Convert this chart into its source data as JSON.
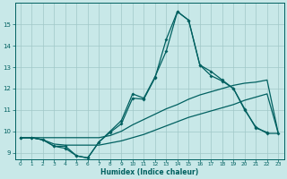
{
  "xlabel": "Humidex (Indice chaleur)",
  "bg_color": "#c8e8e8",
  "grid_color": "#a0c8c8",
  "line_color": "#006060",
  "xlim": [
    -0.5,
    23.5
  ],
  "ylim": [
    8.7,
    16.0
  ],
  "yticks": [
    9,
    10,
    11,
    12,
    13,
    14,
    15
  ],
  "xticks": [
    0,
    1,
    2,
    3,
    4,
    5,
    6,
    7,
    8,
    9,
    10,
    11,
    12,
    13,
    14,
    15,
    16,
    17,
    18,
    19,
    20,
    21,
    22,
    23
  ],
  "s1_x": [
    0,
    1,
    2,
    3,
    4,
    5,
    6,
    7,
    8,
    9,
    10,
    11,
    12,
    13,
    14,
    15,
    16,
    17,
    18,
    19,
    20,
    21,
    22
  ],
  "s1_y": [
    9.7,
    9.7,
    9.6,
    9.3,
    9.3,
    8.85,
    8.75,
    9.5,
    10.0,
    10.5,
    11.75,
    11.55,
    12.55,
    13.75,
    15.6,
    15.2,
    13.1,
    12.6,
    12.35,
    12.0,
    11.05,
    10.15,
    9.95
  ],
  "s2_x": [
    0,
    1,
    2,
    3,
    4,
    5,
    6,
    7,
    8,
    9,
    10,
    11,
    12,
    13,
    14,
    15,
    16,
    17,
    18,
    19,
    20,
    21,
    22,
    23
  ],
  "s2_y": [
    9.7,
    9.7,
    9.6,
    9.4,
    9.35,
    9.35,
    9.35,
    9.35,
    9.45,
    9.55,
    9.7,
    9.85,
    10.05,
    10.25,
    10.45,
    10.65,
    10.8,
    10.95,
    11.1,
    11.25,
    11.45,
    11.6,
    11.75,
    9.9
  ],
  "s3_x": [
    0,
    1,
    2,
    3,
    4,
    5,
    6,
    7,
    8,
    9,
    10,
    11,
    12,
    13,
    14,
    15,
    16,
    17,
    18,
    19,
    20,
    21,
    22,
    23
  ],
  "s3_y": [
    9.7,
    9.7,
    9.7,
    9.7,
    9.7,
    9.7,
    9.7,
    9.7,
    9.8,
    10.0,
    10.3,
    10.55,
    10.8,
    11.05,
    11.25,
    11.5,
    11.7,
    11.85,
    12.0,
    12.15,
    12.25,
    12.3,
    12.4,
    9.9
  ],
  "s4_x": [
    0,
    1,
    2,
    3,
    4,
    5,
    6,
    7,
    8,
    9,
    10,
    11,
    12,
    13,
    14,
    15,
    16,
    17,
    18,
    19,
    20,
    21,
    22,
    23
  ],
  "s4_y": [
    9.7,
    9.7,
    9.6,
    9.3,
    9.2,
    8.85,
    8.75,
    9.5,
    9.95,
    10.35,
    11.55,
    11.5,
    12.5,
    14.3,
    15.6,
    15.2,
    13.1,
    12.8,
    12.4,
    12.0,
    11.0,
    10.2,
    9.9,
    9.9
  ]
}
